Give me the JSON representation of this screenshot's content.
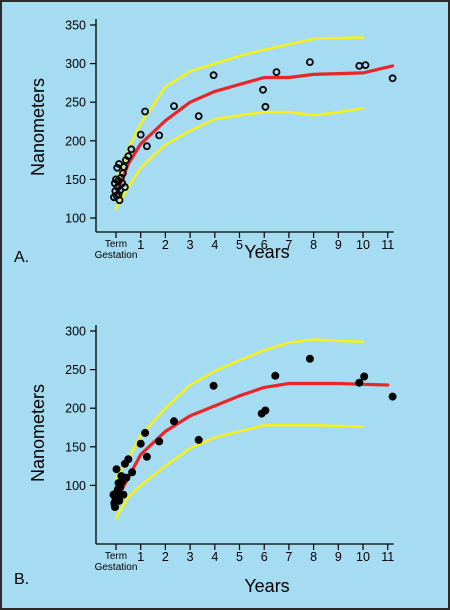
{
  "colors": {
    "background": "#a6dcf2",
    "border": "#2b2b2b",
    "axis": "#000000",
    "mean_line": "#e8262a",
    "bound_lines": "#f5f01e",
    "marker_edge": "#000000"
  },
  "chart_data": [
    {
      "type": "scatter",
      "panel_label": "A.",
      "xlabel": "Years",
      "ylabel": "Nanometers",
      "ylim": [
        100,
        350
      ],
      "xlim": [
        -0.1,
        11.2
      ],
      "yticks": [
        100,
        150,
        200,
        250,
        300,
        350
      ],
      "xticks": [
        {
          "value": 0,
          "label": "Term"
        },
        {
          "value": 1,
          "label": "1"
        },
        {
          "value": 2,
          "label": "2"
        },
        {
          "value": 3,
          "label": "3"
        },
        {
          "value": 4,
          "label": "4"
        },
        {
          "value": 5,
          "label": "5"
        },
        {
          "value": 6,
          "label": "6"
        },
        {
          "value": 7,
          "label": "7"
        },
        {
          "value": 8,
          "label": "8"
        },
        {
          "value": 9,
          "label": "9"
        },
        {
          "value": 10,
          "label": "10"
        },
        {
          "value": 11,
          "label": "11"
        }
      ],
      "x_origin_sublabel": "Gestation",
      "marker": "open-circle",
      "points": [
        {
          "x": -0.08,
          "y": 127
        },
        {
          "x": -0.05,
          "y": 145
        },
        {
          "x": -0.03,
          "y": 135
        },
        {
          "x": 0.0,
          "y": 150
        },
        {
          "x": 0.02,
          "y": 129
        },
        {
          "x": 0.05,
          "y": 165
        },
        {
          "x": 0.07,
          "y": 140
        },
        {
          "x": 0.09,
          "y": 148
        },
        {
          "x": 0.1,
          "y": 130
        },
        {
          "x": 0.12,
          "y": 170
        },
        {
          "x": 0.14,
          "y": 123
        },
        {
          "x": 0.17,
          "y": 136
        },
        {
          "x": 0.2,
          "y": 152
        },
        {
          "x": 0.25,
          "y": 145
        },
        {
          "x": 0.28,
          "y": 158
        },
        {
          "x": 0.32,
          "y": 166
        },
        {
          "x": 0.36,
          "y": 140
        },
        {
          "x": 0.4,
          "y": 175
        },
        {
          "x": 0.5,
          "y": 180
        },
        {
          "x": 0.62,
          "y": 189
        },
        {
          "x": 1.0,
          "y": 208
        },
        {
          "x": 1.18,
          "y": 238
        },
        {
          "x": 1.25,
          "y": 193
        },
        {
          "x": 1.75,
          "y": 207
        },
        {
          "x": 2.35,
          "y": 245
        },
        {
          "x": 3.35,
          "y": 232
        },
        {
          "x": 3.95,
          "y": 285
        },
        {
          "x": 5.95,
          "y": 266
        },
        {
          "x": 6.05,
          "y": 244
        },
        {
          "x": 6.5,
          "y": 289
        },
        {
          "x": 7.85,
          "y": 302
        },
        {
          "x": 9.85,
          "y": 297
        },
        {
          "x": 10.1,
          "y": 298
        },
        {
          "x": 11.2,
          "y": 281
        }
      ],
      "series": [
        {
          "role": "mean",
          "x": [
            0,
            0.5,
            1,
            2,
            3,
            4,
            5,
            6,
            7,
            8,
            9,
            10,
            11.2
          ],
          "y": [
            130,
            170,
            196,
            226,
            250,
            264,
            273,
            282,
            282,
            286,
            287,
            288,
            297
          ]
        },
        {
          "role": "upper",
          "x": [
            0,
            0.5,
            1,
            2,
            3,
            4,
            5,
            6,
            7,
            8,
            9,
            10
          ],
          "y": [
            145,
            190,
            222,
            270,
            290,
            300,
            310,
            318,
            325,
            332,
            333,
            334
          ]
        },
        {
          "role": "lower",
          "x": [
            0,
            0.5,
            1,
            2,
            3,
            4,
            5,
            6,
            7,
            8,
            9,
            10
          ],
          "y": [
            112,
            140,
            165,
            195,
            213,
            228,
            233,
            237,
            237,
            233,
            237,
            242
          ]
        }
      ]
    },
    {
      "type": "scatter",
      "panel_label": "B.",
      "xlabel": "Years",
      "ylabel": "Nanometers",
      "ylim": [
        50,
        300
      ],
      "xlim": [
        -0.1,
        11.2
      ],
      "yticks": [
        100,
        150,
        200,
        250,
        300
      ],
      "xticks": [
        {
          "value": 0,
          "label": "Term"
        },
        {
          "value": 1,
          "label": "1"
        },
        {
          "value": 2,
          "label": "2"
        },
        {
          "value": 3,
          "label": "3"
        },
        {
          "value": 4,
          "label": "4"
        },
        {
          "value": 5,
          "label": "5"
        },
        {
          "value": 6,
          "label": "6"
        },
        {
          "value": 7,
          "label": "7"
        },
        {
          "value": 8,
          "label": "8"
        },
        {
          "value": 9,
          "label": "9"
        },
        {
          "value": 10,
          "label": "10"
        },
        {
          "value": 11,
          "label": "11"
        }
      ],
      "x_origin_sublabel": "Gestation",
      "marker": "filled-circle",
      "points": [
        {
          "x": -0.1,
          "y": 88
        },
        {
          "x": -0.07,
          "y": 77
        },
        {
          "x": -0.04,
          "y": 72
        },
        {
          "x": -0.02,
          "y": 82
        },
        {
          "x": 0.0,
          "y": 90
        },
        {
          "x": 0.02,
          "y": 121
        },
        {
          "x": 0.05,
          "y": 85
        },
        {
          "x": 0.08,
          "y": 95
        },
        {
          "x": 0.1,
          "y": 103
        },
        {
          "x": 0.13,
          "y": 80
        },
        {
          "x": 0.17,
          "y": 98
        },
        {
          "x": 0.22,
          "y": 112
        },
        {
          "x": 0.25,
          "y": 105
        },
        {
          "x": 0.3,
          "y": 88
        },
        {
          "x": 0.36,
          "y": 128
        },
        {
          "x": 0.42,
          "y": 110
        },
        {
          "x": 0.5,
          "y": 134
        },
        {
          "x": 0.65,
          "y": 117
        },
        {
          "x": 1.0,
          "y": 154
        },
        {
          "x": 1.18,
          "y": 168
        },
        {
          "x": 1.25,
          "y": 137
        },
        {
          "x": 1.75,
          "y": 157
        },
        {
          "x": 2.35,
          "y": 183
        },
        {
          "x": 3.35,
          "y": 159
        },
        {
          "x": 3.95,
          "y": 229
        },
        {
          "x": 5.9,
          "y": 193
        },
        {
          "x": 6.05,
          "y": 197
        },
        {
          "x": 6.45,
          "y": 242
        },
        {
          "x": 7.85,
          "y": 264
        },
        {
          "x": 9.85,
          "y": 233
        },
        {
          "x": 10.05,
          "y": 241
        },
        {
          "x": 11.2,
          "y": 215
        }
      ],
      "series": [
        {
          "role": "mean",
          "x": [
            0,
            0.5,
            1,
            2,
            3,
            4,
            5,
            6,
            7,
            8,
            9,
            10,
            11
          ],
          "y": [
            80,
            110,
            140,
            170,
            190,
            203,
            216,
            227,
            232,
            232,
            232,
            231,
            230
          ]
        },
        {
          "role": "upper",
          "x": [
            0,
            0.5,
            1,
            2,
            3,
            4,
            5,
            6,
            7,
            8,
            9,
            10
          ],
          "y": [
            110,
            135,
            165,
            200,
            230,
            248,
            262,
            275,
            285,
            289,
            287,
            286
          ]
        },
        {
          "role": "lower",
          "x": [
            0,
            0.5,
            1,
            2,
            3,
            4,
            5,
            6,
            7,
            8,
            9,
            10
          ],
          "y": [
            58,
            85,
            100,
            125,
            148,
            162,
            170,
            178,
            178,
            178,
            177,
            176
          ]
        }
      ]
    }
  ]
}
